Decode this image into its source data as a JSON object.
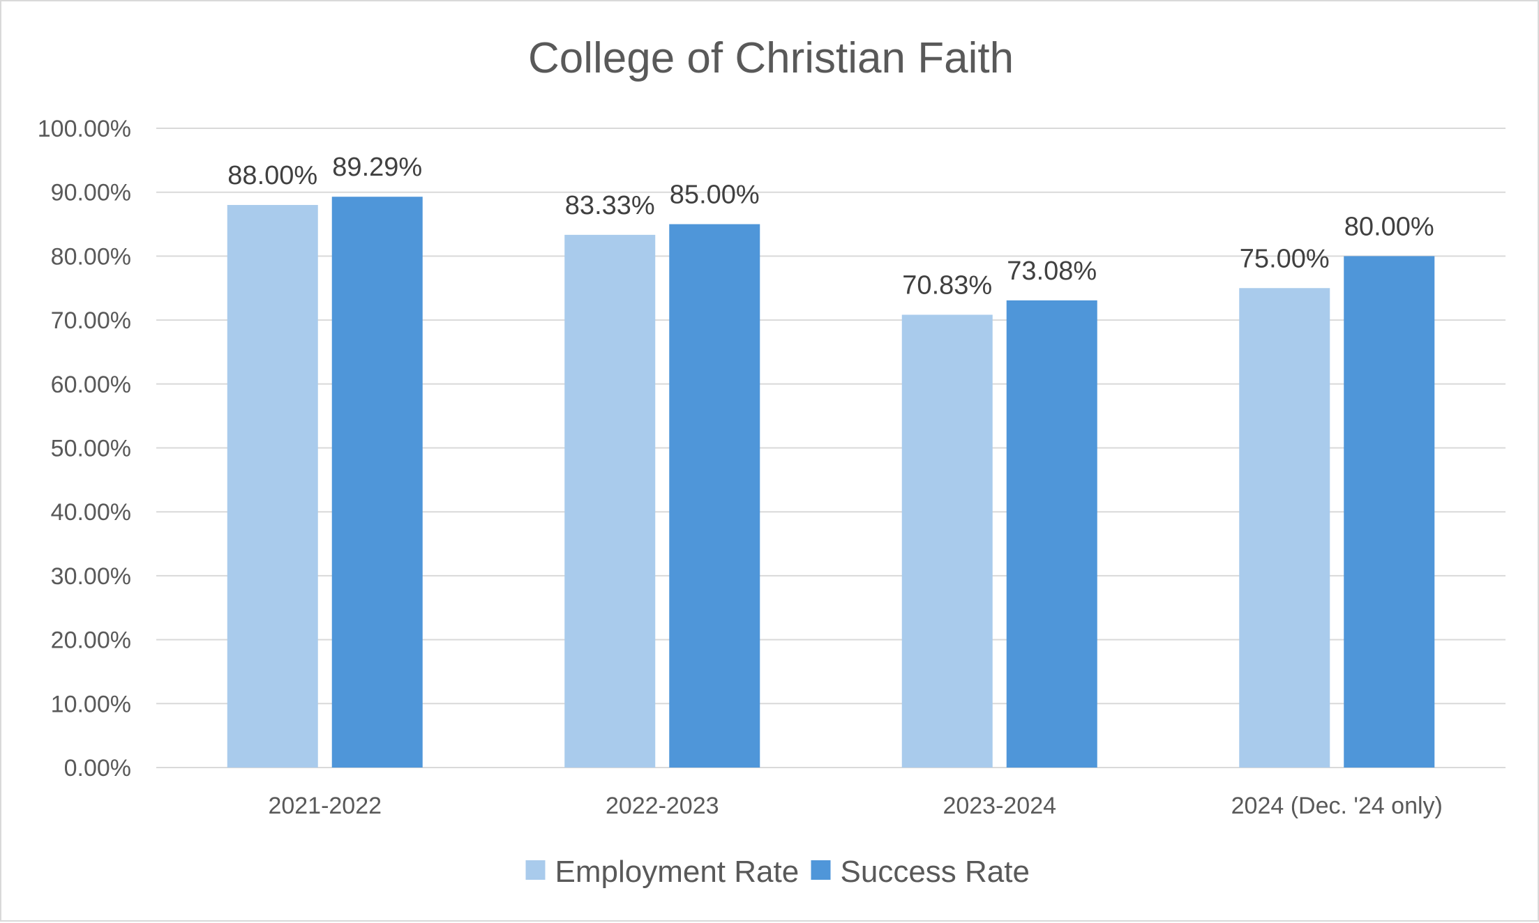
{
  "chart_data": {
    "type": "bar",
    "title": "College of Christian Faith",
    "categories": [
      "2021-2022",
      "2022-2023",
      "2023-2024",
      "2024 (Dec. '24 only)"
    ],
    "series": [
      {
        "name": "Employment Rate",
        "color": "#a9cbec",
        "values": [
          88.0,
          83.33,
          70.83,
          75.0
        ],
        "labels": [
          "88.00%",
          "83.33%",
          "70.83%",
          "75.00%"
        ]
      },
      {
        "name": "Success Rate",
        "color": "#4f96d9",
        "values": [
          89.29,
          85.0,
          73.08,
          80.0
        ],
        "labels": [
          "89.29%",
          "85.00%",
          "73.08%",
          "80.00%"
        ]
      }
    ],
    "ylim": [
      0,
      100
    ],
    "yticks": [
      "0.00%",
      "10.00%",
      "20.00%",
      "30.00%",
      "40.00%",
      "50.00%",
      "60.00%",
      "70.00%",
      "80.00%",
      "90.00%",
      "100.00%"
    ],
    "xlabel": "",
    "ylabel": "",
    "grid": true,
    "gridline_color": "#d9d9d9",
    "legend_position": "bottom"
  }
}
